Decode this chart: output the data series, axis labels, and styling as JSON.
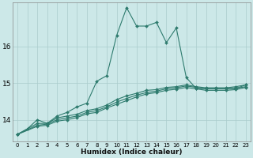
{
  "xlabel": "Humidex (Indice chaleur)",
  "bg_color": "#cce8e8",
  "grid_color": "#aacccc",
  "line_color": "#2e7b6e",
  "xlim": [
    -0.5,
    23.5
  ],
  "ylim": [
    13.4,
    17.2
  ],
  "yticks": [
    14,
    15,
    16
  ],
  "xticks": [
    0,
    1,
    2,
    3,
    4,
    5,
    6,
    7,
    8,
    9,
    10,
    11,
    12,
    13,
    14,
    15,
    16,
    17,
    18,
    19,
    20,
    21,
    22,
    23
  ],
  "main_line_x": [
    0,
    1,
    2,
    3,
    4,
    5,
    6,
    7,
    8,
    9,
    10,
    11,
    12,
    13,
    14,
    15,
    16,
    17,
    18,
    19,
    20,
    21,
    22,
    23
  ],
  "main_line_y": [
    13.6,
    13.75,
    14.0,
    13.9,
    14.1,
    14.2,
    14.35,
    14.45,
    15.05,
    15.2,
    16.3,
    17.05,
    16.55,
    16.55,
    16.65,
    16.1,
    16.5,
    15.15,
    14.85,
    14.85,
    14.85,
    14.85,
    14.85,
    14.95
  ],
  "line2_x": [
    0,
    2,
    3,
    4,
    5,
    6,
    7,
    8,
    9,
    10,
    11,
    12,
    13,
    14,
    15,
    16,
    17,
    18,
    19,
    20,
    21,
    22,
    23
  ],
  "line2_y": [
    13.6,
    13.9,
    13.9,
    14.05,
    14.1,
    14.15,
    14.25,
    14.3,
    14.4,
    14.55,
    14.65,
    14.72,
    14.8,
    14.82,
    14.88,
    14.9,
    14.95,
    14.9,
    14.87,
    14.87,
    14.87,
    14.9,
    14.95
  ],
  "line3_x": [
    0,
    2,
    3,
    4,
    5,
    6,
    7,
    8,
    9,
    10,
    11,
    12,
    13,
    14,
    15,
    16,
    17,
    18,
    19,
    20,
    21,
    22,
    23
  ],
  "line3_y": [
    13.6,
    13.85,
    13.88,
    14.0,
    14.05,
    14.1,
    14.2,
    14.25,
    14.35,
    14.48,
    14.58,
    14.67,
    14.74,
    14.78,
    14.84,
    14.87,
    14.92,
    14.88,
    14.84,
    14.84,
    14.84,
    14.86,
    14.9
  ],
  "line4_x": [
    0,
    2,
    3,
    4,
    5,
    6,
    7,
    8,
    9,
    10,
    11,
    12,
    13,
    14,
    15,
    16,
    17,
    18,
    19,
    20,
    21,
    22,
    23
  ],
  "line4_y": [
    13.6,
    13.82,
    13.85,
    13.96,
    14.0,
    14.06,
    14.16,
    14.2,
    14.32,
    14.42,
    14.52,
    14.62,
    14.7,
    14.74,
    14.8,
    14.83,
    14.88,
    14.84,
    14.8,
    14.8,
    14.8,
    14.82,
    14.88
  ],
  "marker": "D",
  "markersize": 2.0,
  "linewidth": 0.8
}
